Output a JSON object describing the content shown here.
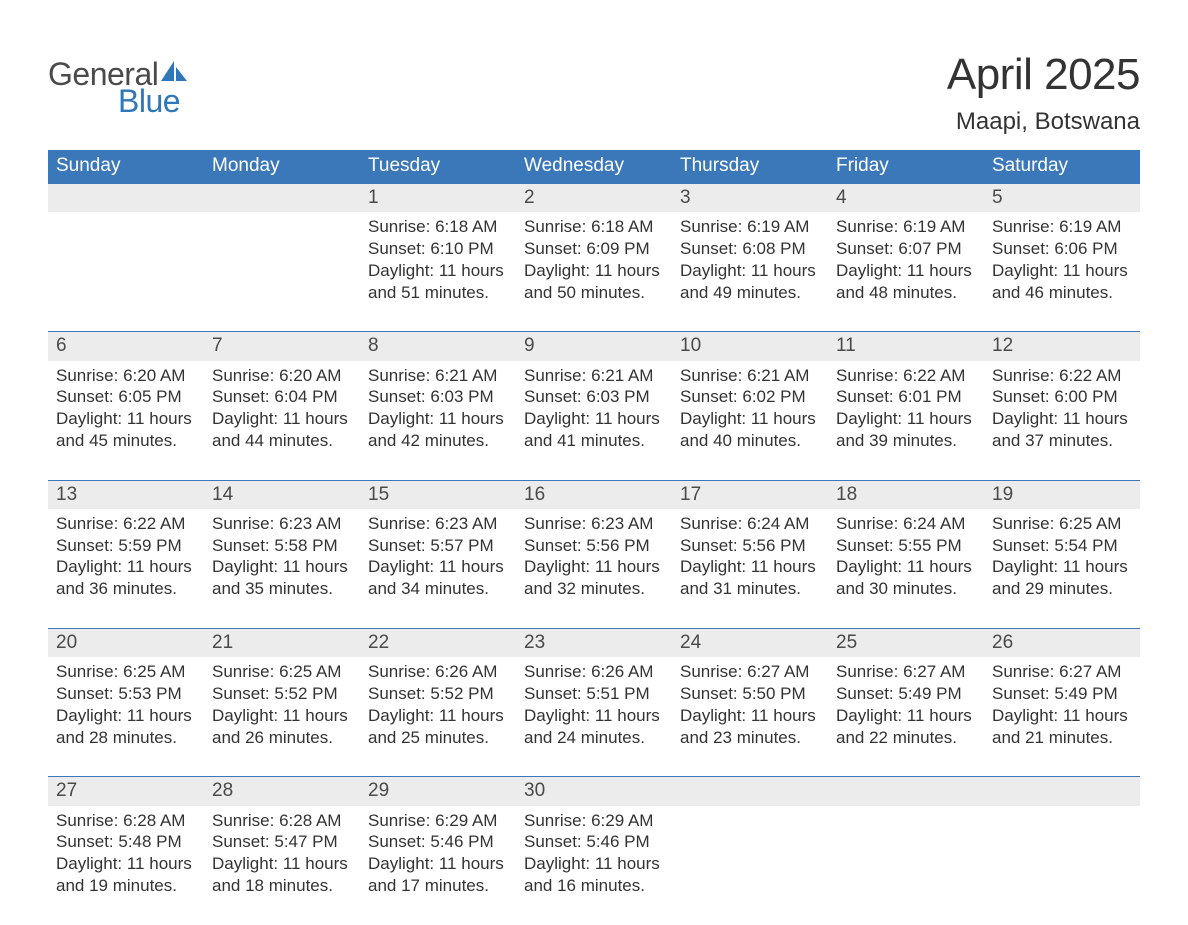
{
  "brand": {
    "general": "General",
    "blue": "Blue"
  },
  "title": "April 2025",
  "location": "Maapi, Botswana",
  "colors": {
    "header_bg": "#3b78b9",
    "header_text": "#ffffff",
    "daynum_bg": "#ececec",
    "row_border": "#3b78b9",
    "body_text": "#333333",
    "logo_gray": "#4a4a4a",
    "logo_blue": "#2f76bb",
    "page_bg": "#ffffff"
  },
  "typography": {
    "title_fontsize": 44,
    "location_fontsize": 24,
    "header_fontsize": 19,
    "daynum_fontsize": 19,
    "body_fontsize": 17,
    "logo_fontsize": 32
  },
  "weekdays": [
    "Sunday",
    "Monday",
    "Tuesday",
    "Wednesday",
    "Thursday",
    "Friday",
    "Saturday"
  ],
  "weeks": [
    [
      null,
      null,
      {
        "n": "1",
        "sunrise": "6:18 AM",
        "sunset": "6:10 PM",
        "dh": "11",
        "dm": "51"
      },
      {
        "n": "2",
        "sunrise": "6:18 AM",
        "sunset": "6:09 PM",
        "dh": "11",
        "dm": "50"
      },
      {
        "n": "3",
        "sunrise": "6:19 AM",
        "sunset": "6:08 PM",
        "dh": "11",
        "dm": "49"
      },
      {
        "n": "4",
        "sunrise": "6:19 AM",
        "sunset": "6:07 PM",
        "dh": "11",
        "dm": "48"
      },
      {
        "n": "5",
        "sunrise": "6:19 AM",
        "sunset": "6:06 PM",
        "dh": "11",
        "dm": "46"
      }
    ],
    [
      {
        "n": "6",
        "sunrise": "6:20 AM",
        "sunset": "6:05 PM",
        "dh": "11",
        "dm": "45"
      },
      {
        "n": "7",
        "sunrise": "6:20 AM",
        "sunset": "6:04 PM",
        "dh": "11",
        "dm": "44"
      },
      {
        "n": "8",
        "sunrise": "6:21 AM",
        "sunset": "6:03 PM",
        "dh": "11",
        "dm": "42"
      },
      {
        "n": "9",
        "sunrise": "6:21 AM",
        "sunset": "6:03 PM",
        "dh": "11",
        "dm": "41"
      },
      {
        "n": "10",
        "sunrise": "6:21 AM",
        "sunset": "6:02 PM",
        "dh": "11",
        "dm": "40"
      },
      {
        "n": "11",
        "sunrise": "6:22 AM",
        "sunset": "6:01 PM",
        "dh": "11",
        "dm": "39"
      },
      {
        "n": "12",
        "sunrise": "6:22 AM",
        "sunset": "6:00 PM",
        "dh": "11",
        "dm": "37"
      }
    ],
    [
      {
        "n": "13",
        "sunrise": "6:22 AM",
        "sunset": "5:59 PM",
        "dh": "11",
        "dm": "36"
      },
      {
        "n": "14",
        "sunrise": "6:23 AM",
        "sunset": "5:58 PM",
        "dh": "11",
        "dm": "35"
      },
      {
        "n": "15",
        "sunrise": "6:23 AM",
        "sunset": "5:57 PM",
        "dh": "11",
        "dm": "34"
      },
      {
        "n": "16",
        "sunrise": "6:23 AM",
        "sunset": "5:56 PM",
        "dh": "11",
        "dm": "32"
      },
      {
        "n": "17",
        "sunrise": "6:24 AM",
        "sunset": "5:56 PM",
        "dh": "11",
        "dm": "31"
      },
      {
        "n": "18",
        "sunrise": "6:24 AM",
        "sunset": "5:55 PM",
        "dh": "11",
        "dm": "30"
      },
      {
        "n": "19",
        "sunrise": "6:25 AM",
        "sunset": "5:54 PM",
        "dh": "11",
        "dm": "29"
      }
    ],
    [
      {
        "n": "20",
        "sunrise": "6:25 AM",
        "sunset": "5:53 PM",
        "dh": "11",
        "dm": "28"
      },
      {
        "n": "21",
        "sunrise": "6:25 AM",
        "sunset": "5:52 PM",
        "dh": "11",
        "dm": "26"
      },
      {
        "n": "22",
        "sunrise": "6:26 AM",
        "sunset": "5:52 PM",
        "dh": "11",
        "dm": "25"
      },
      {
        "n": "23",
        "sunrise": "6:26 AM",
        "sunset": "5:51 PM",
        "dh": "11",
        "dm": "24"
      },
      {
        "n": "24",
        "sunrise": "6:27 AM",
        "sunset": "5:50 PM",
        "dh": "11",
        "dm": "23"
      },
      {
        "n": "25",
        "sunrise": "6:27 AM",
        "sunset": "5:49 PM",
        "dh": "11",
        "dm": "22"
      },
      {
        "n": "26",
        "sunrise": "6:27 AM",
        "sunset": "5:49 PM",
        "dh": "11",
        "dm": "21"
      }
    ],
    [
      {
        "n": "27",
        "sunrise": "6:28 AM",
        "sunset": "5:48 PM",
        "dh": "11",
        "dm": "19"
      },
      {
        "n": "28",
        "sunrise": "6:28 AM",
        "sunset": "5:47 PM",
        "dh": "11",
        "dm": "18"
      },
      {
        "n": "29",
        "sunrise": "6:29 AM",
        "sunset": "5:46 PM",
        "dh": "11",
        "dm": "17"
      },
      {
        "n": "30",
        "sunrise": "6:29 AM",
        "sunset": "5:46 PM",
        "dh": "11",
        "dm": "16"
      },
      null,
      null,
      null
    ]
  ],
  "labels": {
    "sunrise_prefix": "Sunrise: ",
    "sunset_prefix": "Sunset: ",
    "daylight_prefix": "Daylight: ",
    "hours_word": " hours",
    "and_word": "and ",
    "minutes_word": " minutes."
  }
}
